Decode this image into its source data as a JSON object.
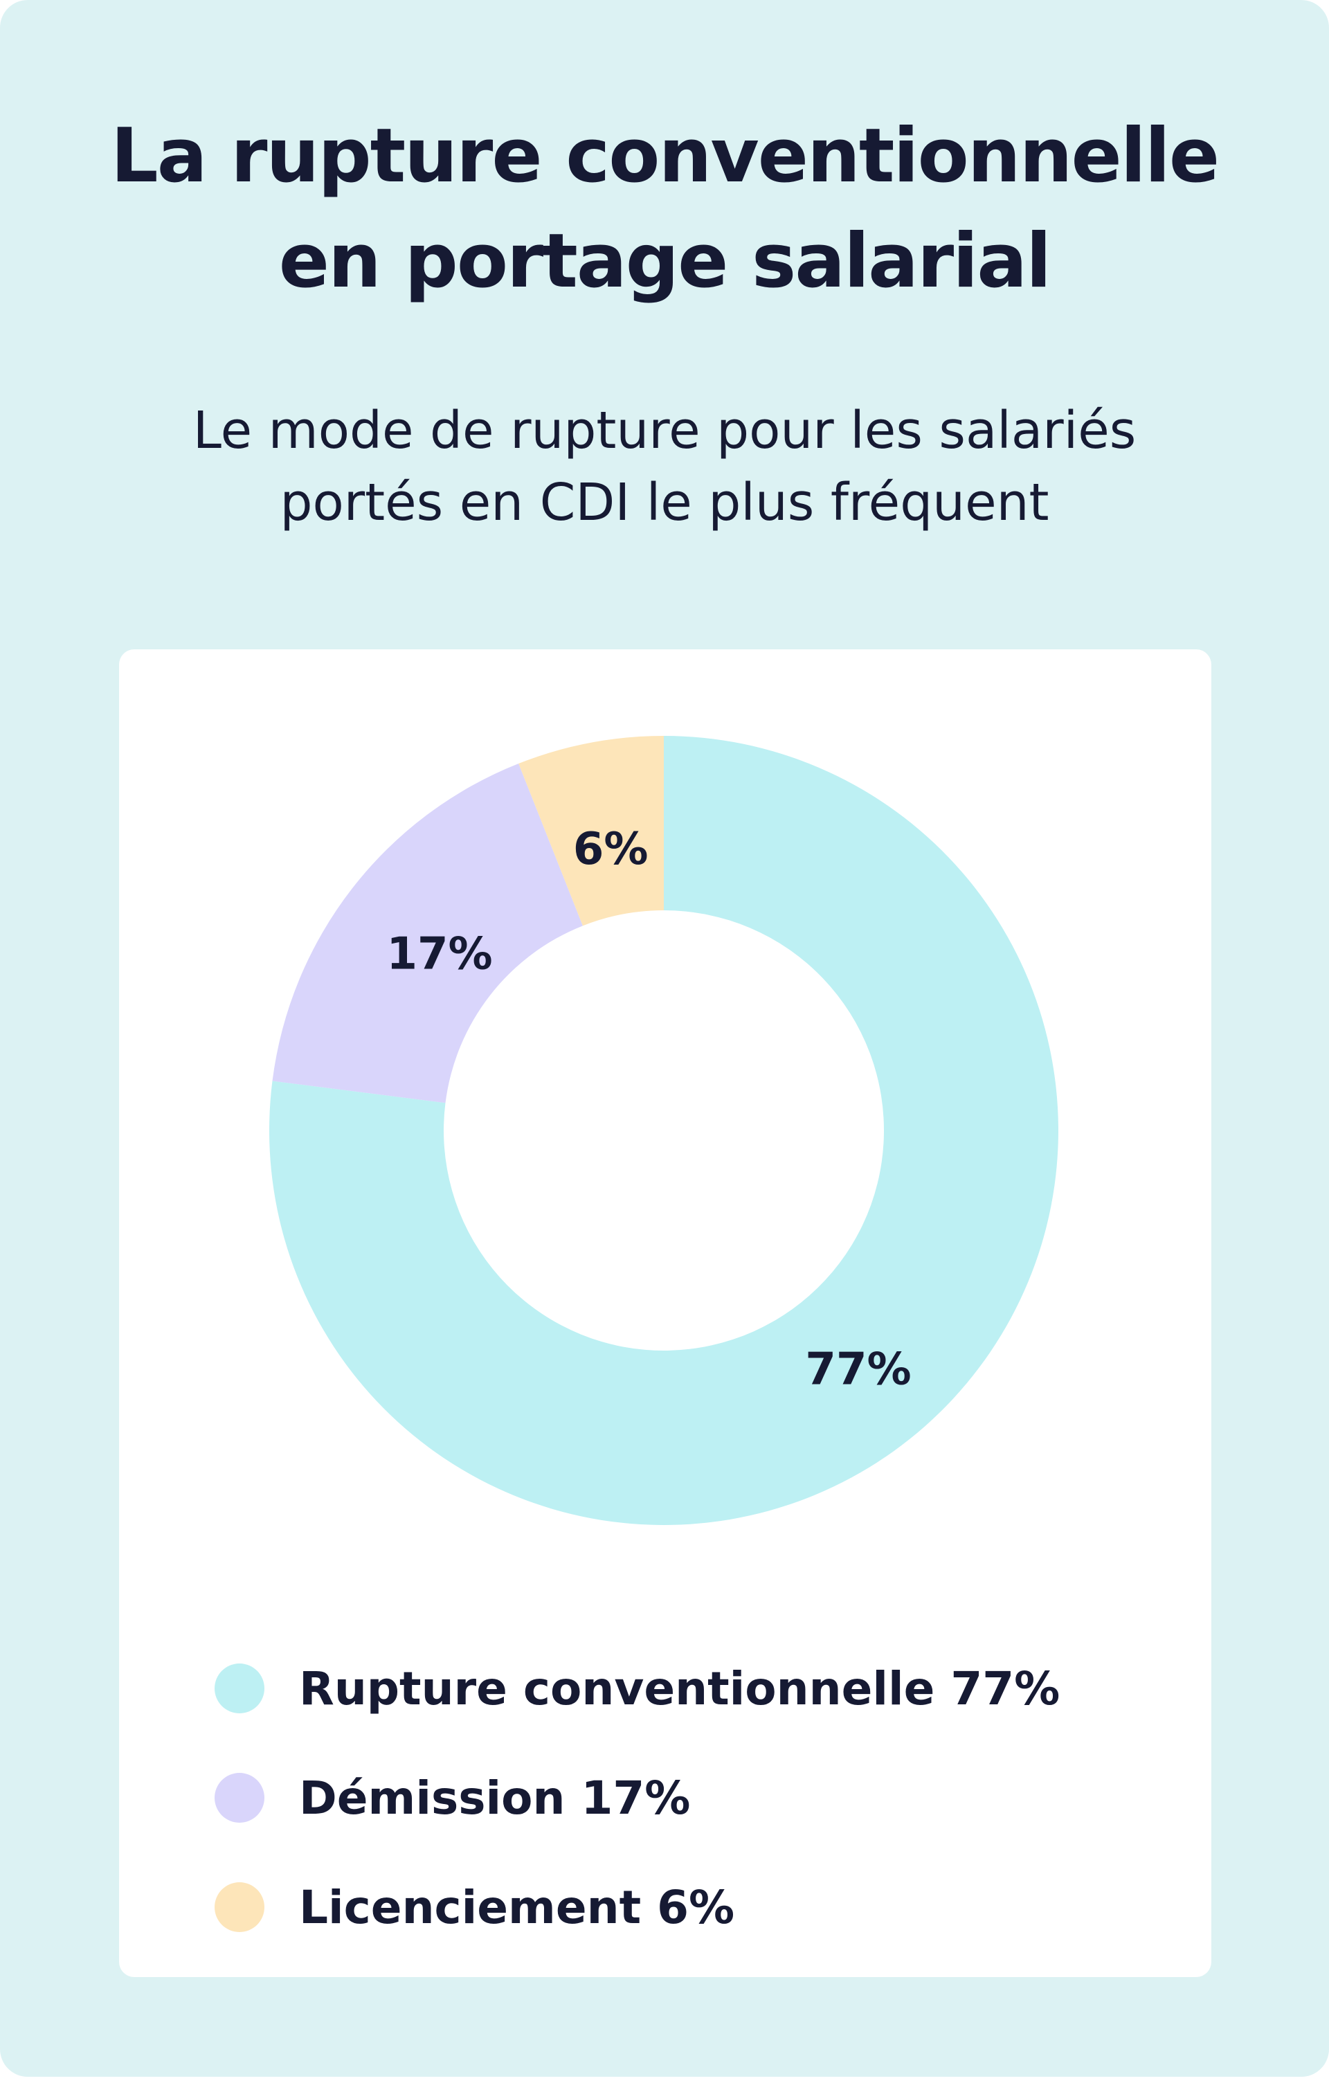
{
  "header": {
    "title_line1": "La rupture conventionnelle",
    "title_line2": "en portage salarial",
    "subtitle_line1": "Le mode de rupture pour les salariés",
    "subtitle_line2": "portés en CDI le plus fréquent"
  },
  "colors": {
    "background": "#dcf2f3",
    "panel": "#ffffff",
    "text": "#161a33"
  },
  "chart_data": {
    "type": "pie",
    "variant": "donut",
    "slices": [
      {
        "name": "Rupture conventionnelle",
        "value": 77,
        "label": "77%",
        "legend": "Rupture conventionnelle 77%",
        "color": "#bdf0f3"
      },
      {
        "name": "Démission",
        "value": 17,
        "label": "17%",
        "legend": "Démission 17%",
        "color": "#d9d5fb"
      },
      {
        "name": "Licenciement",
        "value": 6,
        "label": "6%",
        "legend": "Licenciement 6%",
        "color": "#fde5b9"
      }
    ],
    "start": "top, clockwise",
    "legend_position": "bottom"
  }
}
